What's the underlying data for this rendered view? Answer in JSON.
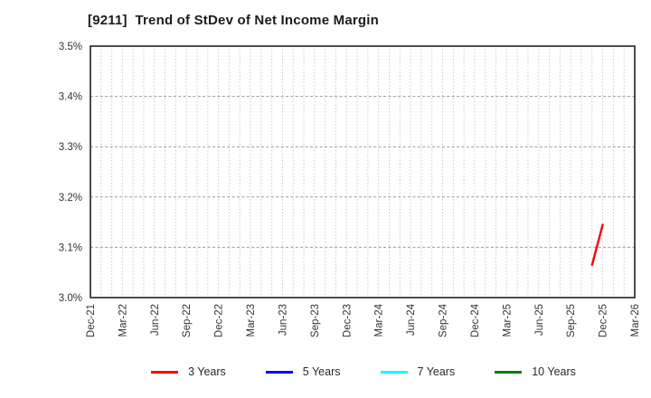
{
  "chart_data": {
    "type": "line",
    "title": "[9211]  Trend of StDev of Net Income Margin",
    "xlabel": "",
    "ylabel": "",
    "y_ticks": [
      "3.0%",
      "3.1%",
      "3.2%",
      "3.3%",
      "3.4%",
      "3.5%"
    ],
    "ylim": [
      3.0,
      3.5
    ],
    "y_unit": "%",
    "x_tick_labels": [
      "Dec-21",
      "Mar-22",
      "Jun-22",
      "Sep-22",
      "Dec-22",
      "Mar-23",
      "Jun-23",
      "Sep-23",
      "Dec-23",
      "Mar-24",
      "Jun-24",
      "Sep-24",
      "Dec-24",
      "Mar-25",
      "Jun-25",
      "Sep-25",
      "Dec-25",
      "Mar-26"
    ],
    "x_months_total": 51,
    "grid": {
      "vertical": "monthly dotted",
      "horizontal": "dashed at each 0.1%"
    },
    "legend_position": "bottom-center",
    "series": [
      {
        "name": "3 Years",
        "color": "#ff0000",
        "points": [
          {
            "x_label": "Nov-25",
            "x_month": 47,
            "y": 3.065
          },
          {
            "x_label": "Dec-25",
            "x_month": 48,
            "y": 3.145
          }
        ]
      },
      {
        "name": "5 Years",
        "color": "#0000ff",
        "points": []
      },
      {
        "name": "7 Years",
        "color": "#00ffff",
        "points": []
      },
      {
        "name": "10 Years",
        "color": "#008000",
        "points": []
      }
    ]
  }
}
